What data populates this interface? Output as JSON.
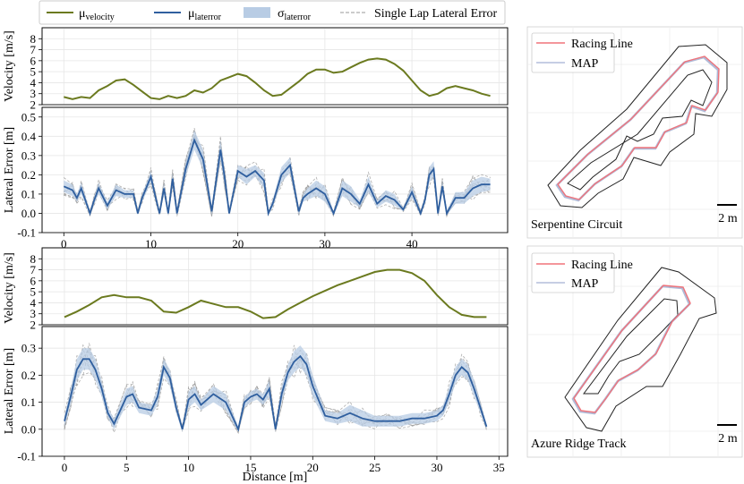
{
  "legend": {
    "mu_velocity": {
      "base": "μ",
      "sub": "velocity"
    },
    "mu_laterror": {
      "base": "μ",
      "sub": "laterror"
    },
    "sigma_laterror": {
      "base": "σ",
      "sub": "laterror"
    },
    "single_lap": "Single Lap Lateral Error"
  },
  "colors": {
    "velocity": "#6b7a1f",
    "mean_error": "#2f5f9f",
    "sigma_band": "#b8cce4",
    "laps": "#9a9a9a",
    "racing_line": "#f0737a",
    "map_line": "#8e9ec8"
  },
  "chart_data": [
    {
      "id": "serpentine_velocity",
      "type": "line",
      "ylabel": "Velocity [m/s]",
      "ylim": [
        2,
        9
      ],
      "yticks": [
        2,
        3,
        4,
        5,
        6,
        7,
        8
      ],
      "xlim": [
        -2.5,
        51
      ],
      "xticks": [
        0,
        10,
        20,
        30,
        40,
        50
      ],
      "x": [
        0,
        1,
        2,
        3,
        4,
        5,
        6,
        7,
        8,
        9,
        10,
        11,
        12,
        13,
        14,
        15,
        16,
        17,
        18,
        19,
        20,
        21,
        22,
        23,
        24,
        25,
        26,
        27,
        28,
        29,
        30,
        31,
        32,
        33,
        34,
        35,
        36,
        37,
        38,
        39,
        40,
        41,
        42,
        43,
        44,
        45,
        46,
        47,
        48,
        49
      ],
      "series": [
        {
          "name": "μvelocity",
          "values": [
            2.7,
            2.5,
            2.7,
            2.6,
            3.3,
            3.7,
            4.2,
            4.3,
            3.8,
            3.2,
            2.6,
            2.5,
            2.8,
            2.6,
            2.8,
            3.3,
            3.1,
            3.5,
            4.2,
            4.5,
            4.8,
            4.6,
            4.0,
            3.3,
            2.8,
            2.9,
            3.5,
            4.1,
            4.8,
            5.2,
            5.2,
            4.9,
            5.0,
            5.4,
            5.8,
            6.1,
            6.2,
            6.1,
            5.7,
            5.1,
            4.2,
            3.3,
            2.8,
            3.0,
            3.5,
            3.7,
            3.5,
            3.3,
            3.0,
            2.8
          ]
        }
      ]
    },
    {
      "id": "serpentine_error",
      "type": "line",
      "ylabel": "Lateral Error [m]",
      "ylim": [
        -0.1,
        0.55
      ],
      "yticks": [
        -0.1,
        0.0,
        0.1,
        0.2,
        0.3,
        0.4,
        0.5
      ],
      "xlim": [
        -2.5,
        51
      ],
      "xticks": [
        0,
        10,
        20,
        30,
        40
      ],
      "x": [
        0,
        1,
        1.5,
        2,
        3,
        3.5,
        4,
        5,
        6,
        7,
        8,
        8.5,
        9,
        10,
        10.5,
        11,
        11.5,
        12,
        12.5,
        13,
        14,
        15,
        16,
        17,
        18,
        18.5,
        19,
        20,
        21,
        22,
        23,
        23.5,
        24,
        25,
        26,
        27,
        27.5,
        28,
        29,
        30,
        31,
        32,
        33,
        34,
        35,
        36,
        37,
        38,
        39,
        40,
        41,
        41.5,
        42,
        42.5,
        43,
        43.5,
        44,
        45,
        46,
        47,
        48,
        49
      ],
      "series": [
        {
          "name": "μlaterror",
          "values": [
            0.14,
            0.12,
            0.08,
            0.13,
            0.0,
            0.07,
            0.13,
            0.04,
            0.12,
            0.1,
            0.1,
            0.0,
            0.08,
            0.19,
            0.09,
            0.0,
            0.13,
            0.0,
            0.18,
            0.0,
            0.23,
            0.38,
            0.28,
            0.01,
            0.33,
            0.18,
            0.0,
            0.22,
            0.19,
            0.22,
            0.17,
            0.0,
            0.05,
            0.2,
            0.25,
            0.01,
            0.08,
            0.1,
            0.13,
            0.1,
            0.0,
            0.13,
            0.1,
            0.05,
            0.15,
            0.05,
            0.09,
            0.07,
            0.02,
            0.11,
            0.0,
            0.07,
            0.2,
            0.23,
            0.0,
            0.14,
            0.0,
            0.08,
            0.08,
            0.13,
            0.15,
            0.15
          ]
        },
        {
          "name": "σlaterror",
          "values": [
            0.03,
            0.03,
            0.02,
            0.03,
            0.01,
            0.02,
            0.03,
            0.02,
            0.03,
            0.02,
            0.02,
            0.01,
            0.02,
            0.03,
            0.02,
            0.01,
            0.03,
            0.01,
            0.03,
            0.01,
            0.04,
            0.05,
            0.05,
            0.02,
            0.05,
            0.04,
            0.01,
            0.03,
            0.04,
            0.03,
            0.04,
            0.01,
            0.02,
            0.04,
            0.04,
            0.02,
            0.02,
            0.03,
            0.04,
            0.04,
            0.01,
            0.04,
            0.04,
            0.02,
            0.04,
            0.02,
            0.03,
            0.03,
            0.01,
            0.03,
            0.01,
            0.02,
            0.04,
            0.04,
            0.01,
            0.03,
            0.01,
            0.03,
            0.03,
            0.04,
            0.04,
            0.03
          ]
        }
      ]
    },
    {
      "id": "azure_velocity",
      "type": "line",
      "ylabel": "Velocity [m/s]",
      "ylim": [
        2,
        9
      ],
      "yticks": [
        2,
        3,
        4,
        5,
        6,
        7,
        8
      ],
      "xlim": [
        -1.8,
        35.7
      ],
      "xticks": [
        0,
        5,
        10,
        15,
        20,
        25,
        30,
        35
      ],
      "x": [
        0,
        1,
        2,
        3,
        4,
        5,
        6,
        7,
        8,
        9,
        10,
        11,
        12,
        13,
        14,
        15,
        16,
        17,
        18,
        19,
        20,
        21,
        22,
        23,
        24,
        25,
        26,
        27,
        28,
        29,
        30,
        31,
        32,
        33,
        34
      ],
      "series": [
        {
          "name": "μvelocity",
          "values": [
            2.7,
            3.2,
            3.8,
            4.5,
            4.7,
            4.5,
            4.5,
            4.2,
            3.2,
            3.1,
            3.6,
            4.2,
            3.9,
            3.6,
            3.6,
            3.2,
            2.6,
            2.7,
            3.4,
            4.0,
            4.6,
            5.1,
            5.6,
            6.0,
            6.4,
            6.8,
            7.0,
            7.0,
            6.7,
            6.0,
            4.7,
            3.6,
            2.9,
            2.7,
            2.7
          ]
        }
      ]
    },
    {
      "id": "azure_error",
      "type": "line",
      "xlabel": "Distance [m]",
      "ylabel": "Lateral Error [m]",
      "ylim": [
        -0.1,
        0.38
      ],
      "yticks": [
        -0.1,
        0.0,
        0.1,
        0.2,
        0.3
      ],
      "xlim": [
        -1.8,
        35.7
      ],
      "xticks": [
        0,
        5,
        10,
        15,
        20,
        25,
        30,
        35
      ],
      "x": [
        0,
        0.5,
        1,
        1.5,
        2,
        2.5,
        3,
        3.5,
        4,
        5,
        5.5,
        6,
        7,
        7.5,
        8,
        8.5,
        9,
        9.5,
        10,
        10.5,
        11,
        12,
        13,
        14,
        14.5,
        15,
        15.5,
        16,
        16.5,
        17,
        17.5,
        18,
        18.5,
        19,
        19.5,
        20,
        21,
        22,
        23,
        24,
        25,
        26,
        27,
        28,
        29,
        30,
        30.5,
        31,
        31.5,
        32,
        32.5,
        33,
        33.5,
        34
      ],
      "series": [
        {
          "name": "μlaterror",
          "values": [
            0.03,
            0.12,
            0.22,
            0.26,
            0.26,
            0.22,
            0.15,
            0.06,
            0.02,
            0.12,
            0.13,
            0.08,
            0.07,
            0.12,
            0.23,
            0.19,
            0.08,
            0.0,
            0.11,
            0.13,
            0.09,
            0.13,
            0.1,
            0.0,
            0.1,
            0.12,
            0.13,
            0.11,
            0.15,
            0.0,
            0.13,
            0.21,
            0.25,
            0.27,
            0.24,
            0.16,
            0.05,
            0.04,
            0.06,
            0.04,
            0.03,
            0.03,
            0.03,
            0.04,
            0.04,
            0.05,
            0.07,
            0.13,
            0.2,
            0.23,
            0.21,
            0.15,
            0.08,
            0.01
          ]
        },
        {
          "name": "σlaterror",
          "values": [
            0.02,
            0.03,
            0.04,
            0.04,
            0.04,
            0.04,
            0.03,
            0.02,
            0.02,
            0.03,
            0.03,
            0.02,
            0.02,
            0.03,
            0.03,
            0.03,
            0.02,
            0.01,
            0.03,
            0.03,
            0.02,
            0.03,
            0.03,
            0.01,
            0.02,
            0.02,
            0.02,
            0.02,
            0.03,
            0.01,
            0.03,
            0.03,
            0.04,
            0.04,
            0.04,
            0.04,
            0.02,
            0.02,
            0.03,
            0.03,
            0.02,
            0.02,
            0.02,
            0.02,
            0.02,
            0.02,
            0.02,
            0.03,
            0.03,
            0.03,
            0.03,
            0.03,
            0.02,
            0.01
          ]
        }
      ]
    }
  ],
  "maps": [
    {
      "name": "Serpentine Circuit",
      "legend": [
        "Racing Line",
        "MAP"
      ],
      "scale": "2 m"
    },
    {
      "name": "Azure Ridge Track",
      "legend": [
        "Racing Line",
        "MAP"
      ],
      "scale": "2 m"
    }
  ]
}
